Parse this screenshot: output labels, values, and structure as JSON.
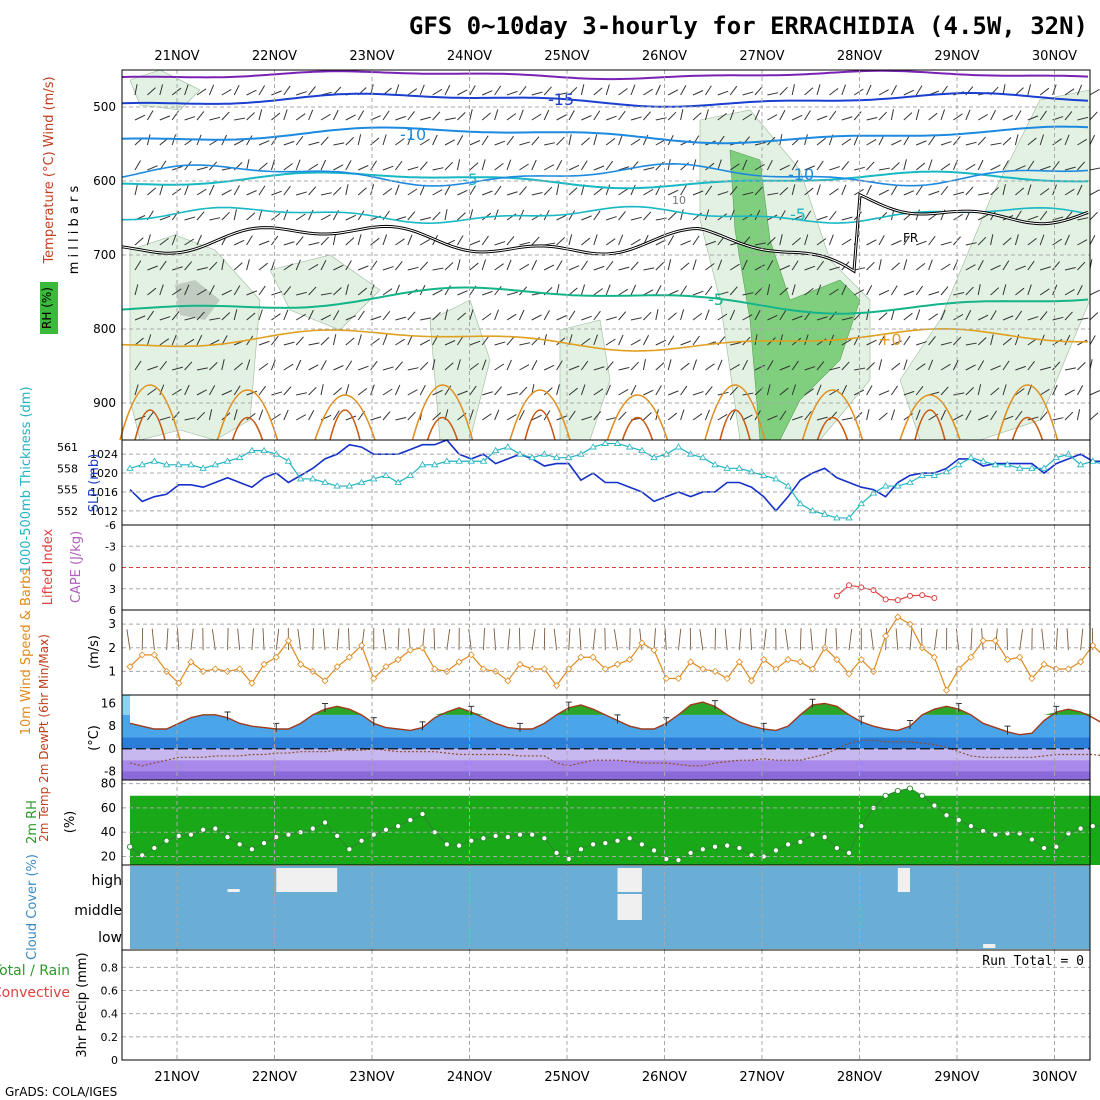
{
  "title": "GFS 0~10day 3-hourly for ERRACHIDIA (4.5W, 32N)",
  "footer": "GrADS: COLA/IGES",
  "dates": [
    "21NOV",
    "22NOV",
    "23NOV",
    "24NOV",
    "25NOV",
    "26NOV",
    "27NOV",
    "28NOV",
    "29NOV",
    "30NOV"
  ],
  "colors": {
    "grid": "#a8a8a8",
    "slp": "#1430c8",
    "thick": "#20b4c0",
    "li": "#e04040",
    "wind": "#e08a1e",
    "temp_line": "#a03a1a",
    "green": "#2aa52a",
    "rh_fill": "#9ed49e",
    "cloud": "#6aaed6"
  },
  "chart_data": [
    {
      "name": "upper-air-cross-section",
      "type": "area",
      "ylabel": "Temperature (°C)  Wind (m/s)",
      "ylabel2": "m i l l i b a r s",
      "legend_rh": "RH (%)",
      "yticks": [
        500,
        600,
        700,
        800,
        900
      ],
      "ylim": [
        450,
        950
      ],
      "contour_labels": [
        "-15",
        "-10",
        "-5",
        "-10",
        "-5",
        "-5",
        "FR",
        "+0",
        "10"
      ]
    },
    {
      "name": "thickness-slp",
      "type": "line",
      "ylabel_left": "1000-500mb Thickness (dm)",
      "ylabel_right": "SLP (mb)",
      "thick_ticks": [
        561,
        558,
        555,
        552
      ],
      "slp_ticks": [
        1024,
        1020,
        1016,
        1012
      ],
      "thick_range": [
        550,
        562
      ],
      "slp_range": [
        1009,
        1027
      ],
      "series": [
        {
          "name": "SLP (mb)",
          "values": [
            1016.5,
            1014,
            1015,
            1015.5,
            1017.5,
            1017.5,
            1017,
            1018,
            1019,
            1018,
            1017,
            1019,
            1020,
            1018,
            1019.5,
            1021,
            1023,
            1024,
            1026,
            1025.5,
            1024,
            1024,
            1024,
            1025,
            1026,
            1026,
            1027,
            1024,
            1023,
            1024,
            1022,
            1023,
            1024,
            1023,
            1021.5,
            1022,
            1022,
            1018.5,
            1020,
            1018,
            1018,
            1017,
            1016,
            1014,
            1015,
            1016,
            1015,
            1016,
            1016,
            1018,
            1018,
            1017,
            1015,
            1012,
            1015,
            1018.5,
            1020,
            1021,
            1019,
            1018,
            1017,
            1016.5,
            1015,
            1018,
            1019.5,
            1020,
            1020,
            1021,
            1023,
            1023,
            1021.5,
            1022,
            1022,
            1022,
            1022,
            1020,
            1022,
            1023,
            1024,
            1022.5,
            1022.5,
            1023,
            1022,
            1018,
            1020,
            1021,
            1020,
            1019,
            1019
          ]
        },
        {
          "name": "1000-500mb Thickness (dm)",
          "values": [
            558,
            558.5,
            559,
            558.5,
            558.5,
            558.5,
            558,
            558.5,
            559,
            559.5,
            560.5,
            560.5,
            560,
            559,
            556.5,
            556.5,
            556,
            555.5,
            555.5,
            556,
            556.5,
            557,
            556,
            557,
            558.5,
            558.5,
            559,
            559,
            559,
            559,
            560.5,
            561,
            560,
            559.5,
            560,
            559.5,
            559.5,
            560,
            561,
            561.5,
            561.5,
            561,
            560.5,
            559.5,
            560,
            561,
            560,
            559.5,
            558.5,
            558,
            558,
            557.5,
            557,
            556.5,
            555.5,
            553,
            552,
            551.5,
            551,
            551,
            553,
            554.5,
            555.5,
            555.5,
            556,
            557,
            557,
            557.5,
            558.5,
            559.5,
            559,
            558.5,
            558.5,
            558,
            558,
            558,
            559.5,
            560,
            558.5,
            559,
            558.5,
            558,
            558,
            557.5,
            557,
            556,
            555.5,
            555,
            554.5
          ]
        }
      ]
    },
    {
      "name": "lifted-index-cape",
      "type": "line",
      "ylabel_left": "Lifted Index",
      "ylabel_right": "CAPE (J/kg)",
      "yticks": [
        "-6",
        "-3",
        "0",
        "3",
        "6"
      ],
      "ylim": [
        -6,
        6
      ],
      "series": [
        {
          "name": "Lifted Index",
          "x_index": [
            58,
            59,
            60,
            61,
            62,
            63,
            64,
            65,
            66
          ],
          "values": [
            4.0,
            2.5,
            2.8,
            3.2,
            4.5,
            4.6,
            4.0,
            3.9,
            4.3
          ]
        }
      ]
    },
    {
      "name": "wind-10m",
      "type": "line",
      "ylabel_left": "10m Wind Speed & Barbs",
      "ylabel_right": "(m/s)",
      "yticks": [
        1,
        2,
        3
      ],
      "ylim": [
        0,
        3.6
      ],
      "series": [
        {
          "name": "10m Wind Speed",
          "values": [
            1.2,
            1.7,
            1.7,
            1.0,
            0.5,
            1.4,
            1.0,
            1.1,
            1.0,
            1.1,
            0.5,
            1.3,
            1.6,
            2.3,
            1.3,
            1.0,
            0.6,
            1.2,
            1.6,
            2.1,
            0.7,
            1.2,
            1.5,
            1.9,
            2.0,
            1.1,
            1.0,
            1.4,
            1.7,
            1.1,
            1.0,
            0.6,
            1.3,
            1.1,
            1.1,
            0.4,
            1.1,
            1.6,
            1.6,
            1.1,
            1.3,
            1.5,
            2.2,
            1.9,
            0.7,
            0.7,
            1.4,
            1.1,
            1.0,
            0.7,
            1.4,
            0.6,
            1.5,
            1.1,
            1.5,
            1.4,
            1.1,
            2.0,
            1.5,
            0.9,
            1.5,
            1.0,
            2.5,
            3.3,
            3.0,
            2.0,
            1.6,
            0.2,
            1.1,
            1.6,
            2.3,
            2.3,
            1.5,
            1.6,
            0.7,
            1.3,
            1.1,
            1.1,
            1.4,
            2.1,
            1.6,
            1.2,
            1.6,
            2.4,
            1.4,
            1.3,
            1.6,
            1.6,
            1.5
          ]
        }
      ]
    },
    {
      "name": "2m-temp",
      "type": "area",
      "ylabel": "2m Temp 2m DewPt (6hr Min/Max)",
      "yunit": "(°C)",
      "yticks": [
        16,
        8,
        0,
        -8
      ],
      "ylim": [
        -11,
        19
      ],
      "series": [
        {
          "name": "2m Temp",
          "values": [
            9,
            8,
            7,
            7,
            9,
            11,
            12,
            12,
            11,
            9,
            8,
            7.5,
            7,
            7,
            9,
            12,
            14,
            15,
            14,
            12,
            9,
            7.5,
            7,
            6.5,
            7.5,
            11,
            13,
            14.5,
            13,
            11,
            9,
            7.5,
            7,
            7,
            9,
            12,
            14.5,
            15.5,
            14,
            12,
            10,
            8,
            7,
            7,
            9,
            12,
            15.5,
            16.5,
            15,
            12,
            9.5,
            8,
            7,
            6.5,
            8,
            12,
            15.5,
            16,
            15,
            12,
            9.5,
            8,
            7,
            6.5,
            8,
            12,
            14,
            15,
            14,
            12,
            9,
            7.5,
            6,
            5,
            5.5,
            10,
            13,
            14,
            13,
            11,
            8.5,
            7,
            6,
            6.5,
            9,
            13,
            15,
            16,
            14.5
          ]
        },
        {
          "name": "2m DewPt",
          "values": [
            -5,
            -6,
            -5,
            -4,
            -3,
            -3,
            -3,
            -2.5,
            -2.5,
            -2.5,
            -2,
            -2,
            -1.5,
            -1.5,
            -1,
            -1,
            -1,
            -0.5,
            -0.5,
            -0.5,
            0,
            -0.5,
            -1,
            -1,
            -1,
            -1,
            -1.5,
            -2,
            -2,
            -2,
            -2,
            -2,
            -2.5,
            -2.5,
            -2.5,
            -5,
            -6,
            -5,
            -4,
            -4,
            -4,
            -4.5,
            -5,
            -5,
            -5,
            -5.5,
            -6,
            -6,
            -5,
            -4.5,
            -4,
            -4,
            -3.5,
            -4,
            -4,
            -4,
            -3,
            -2,
            0,
            2,
            3,
            3,
            2.5,
            2.5,
            2.5,
            2,
            1.5,
            0.5,
            -1,
            -2.5,
            -3,
            -3,
            -3,
            -3,
            -3,
            -2.5,
            -2,
            -2,
            -2,
            -2,
            -2.5,
            -3,
            -2,
            -2,
            -2,
            -2,
            -2,
            -2.5,
            -2.5
          ]
        }
      ]
    },
    {
      "name": "2m-rh",
      "type": "area",
      "ylabel": "2m RH",
      "yunit": "(%)",
      "yticks": [
        80,
        60,
        40,
        20
      ],
      "ylim": [
        13,
        83
      ],
      "series": [
        {
          "name": "2m RH",
          "values": [
            28,
            21,
            27,
            33,
            37,
            38,
            42,
            43,
            36,
            30,
            26,
            31,
            36,
            38,
            40,
            43,
            48,
            37,
            26,
            33,
            38,
            42,
            45,
            50,
            55,
            40,
            30,
            29,
            33,
            35,
            37,
            36,
            38,
            38,
            35,
            23,
            18,
            26,
            30,
            31,
            33,
            35,
            30,
            25,
            18,
            17,
            23,
            26,
            28,
            29,
            27,
            21,
            20,
            25,
            30,
            32,
            38,
            36,
            27,
            23,
            45,
            60,
            70,
            74,
            76,
            70,
            62,
            54,
            50,
            45,
            41,
            38,
            39,
            39,
            34,
            27,
            28,
            39,
            43,
            45,
            45,
            38,
            27,
            25,
            30,
            34,
            36,
            38,
            40
          ]
        }
      ]
    },
    {
      "name": "cloud-cover",
      "type": "heatmap",
      "ylabel": "Cloud Cover (%)",
      "levels": [
        "high",
        "middle",
        "low"
      ],
      "clear_cells": [
        {
          "level": "high",
          "start_index": 8,
          "end_index": 9,
          "note": "small"
        },
        {
          "level": "high",
          "start_index": 12,
          "end_index": 17,
          "note": "clear"
        },
        {
          "level": "high",
          "start_index": 40,
          "end_index": 42,
          "note": "clear"
        },
        {
          "level": "middle",
          "start_index": 40,
          "end_index": 42,
          "note": "clear"
        },
        {
          "level": "high",
          "start_index": 63,
          "end_index": 64,
          "note": "clear"
        },
        {
          "level": "low",
          "start_index": 70,
          "end_index": 71,
          "note": "thin"
        }
      ]
    },
    {
      "name": "precip",
      "type": "bar",
      "ylabel": "3hr Precip (mm)",
      "legend": [
        "Total / Rain",
        "Convective"
      ],
      "yticks": [
        "0.8",
        "0.6",
        "0.4",
        "0.2",
        "0"
      ],
      "ylim": [
        0,
        0.95
      ],
      "annotation": "Run Total = 0",
      "values": []
    }
  ]
}
